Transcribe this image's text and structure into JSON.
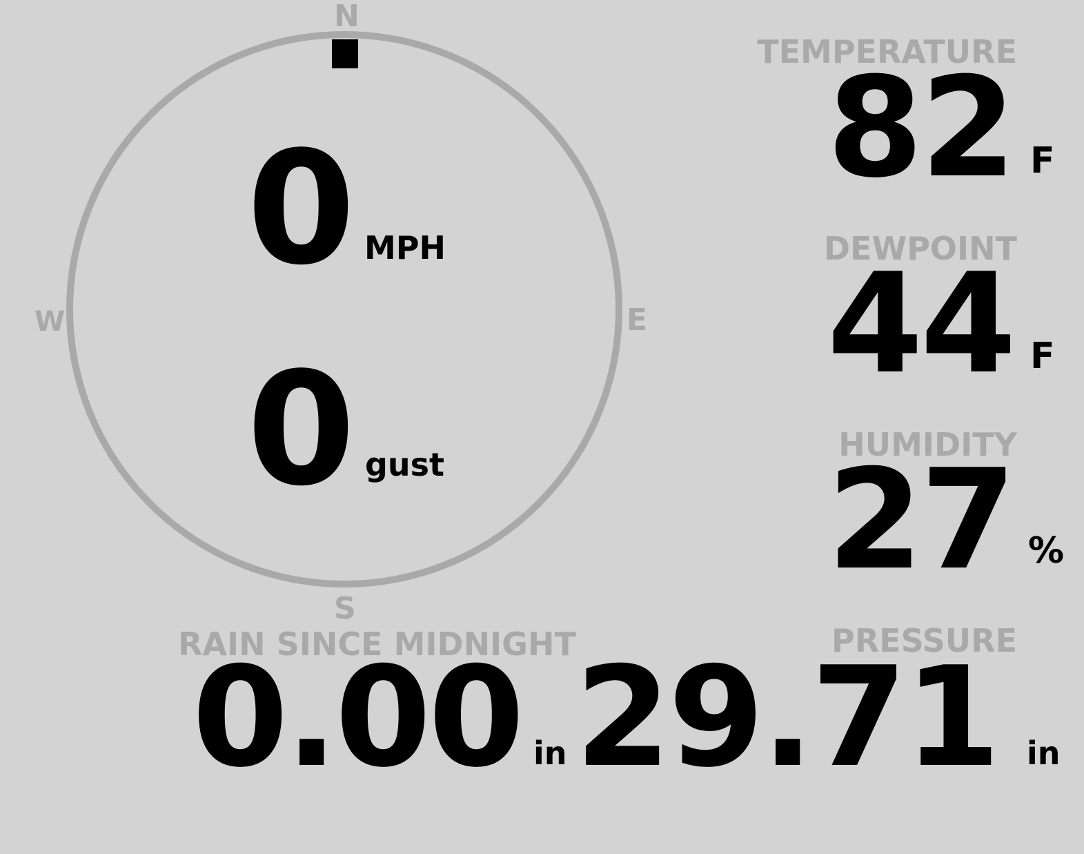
{
  "wind": {
    "speed": "0",
    "speed_unit": "MPH",
    "gust": "0",
    "gust_unit": "gust",
    "direction_degrees": 0,
    "compass": {
      "n": "N",
      "e": "E",
      "s": "S",
      "w": "W"
    }
  },
  "rain": {
    "label": "RAIN SINCE MIDNIGHT",
    "value": "0.00",
    "unit": "in"
  },
  "temperature": {
    "label": "TEMPERATURE",
    "value": "82",
    "unit": "F"
  },
  "dewpoint": {
    "label": "DEWPOINT",
    "value": "44",
    "unit": "F"
  },
  "humidity": {
    "label": "HUMIDITY",
    "value": "27",
    "unit": "%"
  },
  "pressure": {
    "label": "PRESSURE",
    "value": "29.71",
    "unit": "in"
  },
  "colors": {
    "background": "#d3d3d3",
    "muted": "#a9a9a9",
    "value": "#000000"
  }
}
